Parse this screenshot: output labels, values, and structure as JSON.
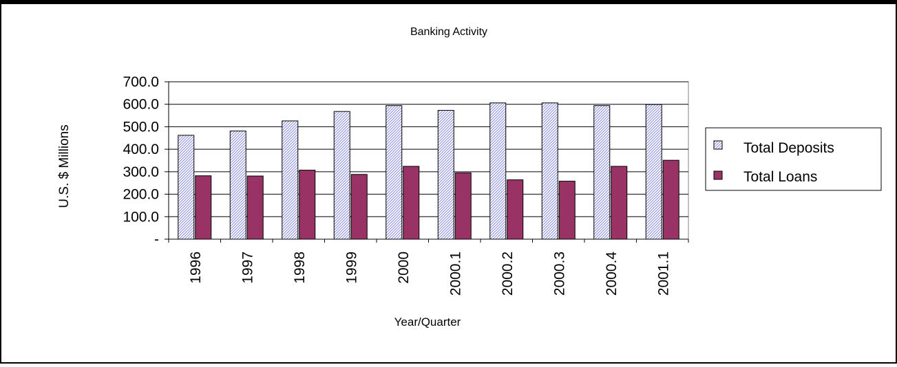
{
  "chart_data": {
    "type": "bar",
    "title": "Banking Activity",
    "xlabel": "Year/Quarter",
    "ylabel": "U.S. $ Millions",
    "categories": [
      "1996",
      "1997",
      "1998",
      "1999",
      "2000",
      "2000.1",
      "2000.2",
      "2000.3",
      "2000.4",
      "2001.1"
    ],
    "series": [
      {
        "name": "Total Deposits",
        "values": [
          462,
          481,
          526,
          568,
          594,
          573,
          606,
          606,
          594,
          599
        ],
        "color": "#9999ff",
        "pattern": "diagonal-hatch"
      },
      {
        "name": "Total Loans",
        "values": [
          282,
          281,
          307,
          288,
          324,
          295,
          264,
          258,
          324,
          351
        ],
        "color": "#993366",
        "pattern": "solid"
      }
    ],
    "ylim": [
      0,
      700
    ],
    "yticks": [
      0,
      100,
      200,
      300,
      400,
      500,
      600,
      700
    ],
    "ytick_labels": [
      "-",
      "100.0",
      "200.0",
      "300.0",
      "400.0",
      "500.0",
      "600.0",
      "700.0"
    ],
    "grid": true,
    "legend_position": "right"
  }
}
